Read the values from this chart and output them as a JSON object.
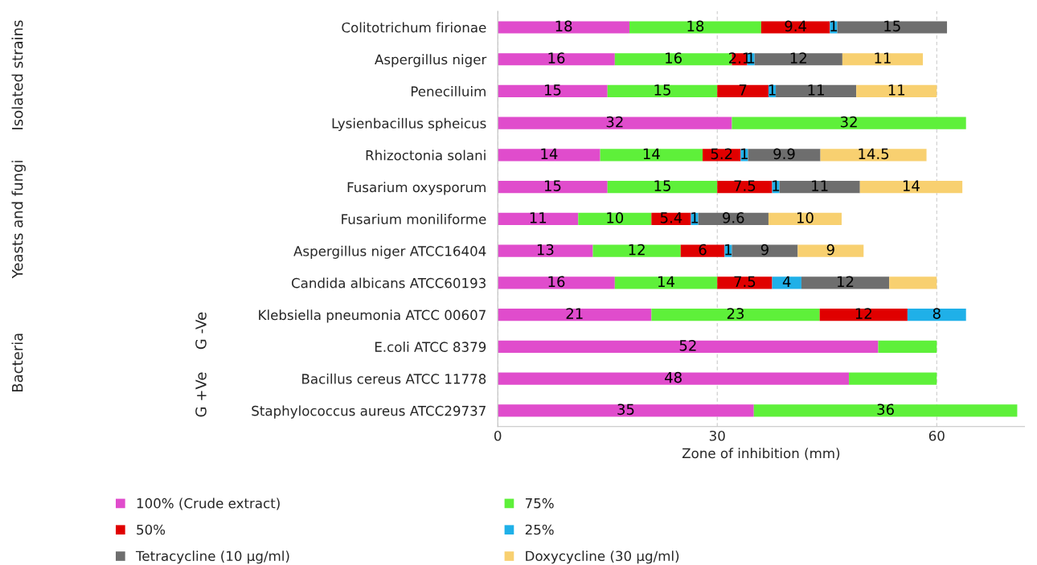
{
  "chart_data": {
    "type": "bar",
    "orientation": "horizontal",
    "stacked": true,
    "categories": [
      "Colitotrichum firionae",
      "Aspergillus niger",
      "Penecilluim",
      "Lysienbacillus spheicus",
      "Rhizoctonia solani",
      "Fusarium oxysporum",
      "Fusarium moniliforme",
      "Aspergillus niger ATCC16404",
      "Candida albicans ATCC60193",
      "Klebsiella pneumonia ATCC 00607",
      "E.coli ATCC 8379",
      "Bacillus cereus ATCC 11778",
      "Staphylococcus aureus ATCC29737"
    ],
    "series": [
      {
        "name": "100% (Crude extract)",
        "color": "#e04ccc",
        "values": [
          18,
          16,
          15,
          32,
          14,
          15,
          11,
          13,
          16,
          21,
          52,
          48,
          35
        ],
        "value_labels": [
          "18",
          "16",
          "15",
          "32",
          "14",
          "15",
          "11",
          "13",
          "16",
          "21",
          "52",
          "48",
          "35"
        ]
      },
      {
        "name": "75%",
        "color": "#5ef03a",
        "values": [
          18,
          16,
          15,
          32,
          14,
          15,
          10,
          12,
          14,
          23,
          8,
          12,
          36
        ],
        "value_labels": [
          "18",
          "16",
          "15",
          "32",
          "14",
          "15",
          "10",
          "12",
          "14",
          "23",
          null,
          null,
          "36"
        ]
      },
      {
        "name": "50%",
        "color": "#e00000",
        "values": [
          9.4,
          2.1,
          7,
          null,
          5.2,
          7.5,
          5.4,
          6,
          7.5,
          12,
          null,
          null,
          null
        ],
        "value_labels": [
          "9.4",
          "2.1",
          "7",
          null,
          "5.2",
          "7.5",
          "5.4",
          "6",
          "7.5",
          "12",
          null,
          null,
          null
        ]
      },
      {
        "name": "25%",
        "color": "#1fb0e8",
        "values": [
          1,
          1,
          1,
          null,
          1,
          1,
          1,
          1,
          4,
          8,
          null,
          null,
          null
        ],
        "value_labels": [
          "1",
          "1",
          "1",
          null,
          "1",
          "1",
          "1",
          "1",
          "4",
          "8",
          null,
          null,
          null
        ]
      },
      {
        "name": "Tetracycline (10 µg/ml)",
        "color": "#6e6e6e",
        "values": [
          15,
          12,
          11,
          null,
          9.9,
          11,
          9.6,
          9,
          12,
          null,
          null,
          null,
          null
        ],
        "value_labels": [
          "15",
          "12",
          "11",
          null,
          "9.9",
          "11",
          "9.6",
          "9",
          "12",
          null,
          null,
          null,
          null
        ]
      },
      {
        "name": "Doxycycline (30 µg/ml)",
        "color": "#f8d070",
        "values": [
          null,
          11,
          11,
          null,
          14.5,
          14,
          10,
          9,
          6.5,
          null,
          null,
          null,
          null
        ],
        "value_labels": [
          null,
          "11",
          "11",
          null,
          "14.5",
          "14",
          "10",
          "9",
          null,
          null,
          null,
          null,
          null
        ]
      }
    ],
    "xlabel": "Zone of inhibition (mm)",
    "xlim": [
      0,
      72
    ],
    "xticks": [
      0,
      30,
      60
    ],
    "grid": "x",
    "legend": "bottom",
    "annotations": [
      "Isolated strains",
      "Yeasts and fungi",
      "Bacteria",
      "G -Ve",
      "G +Ve"
    ]
  }
}
